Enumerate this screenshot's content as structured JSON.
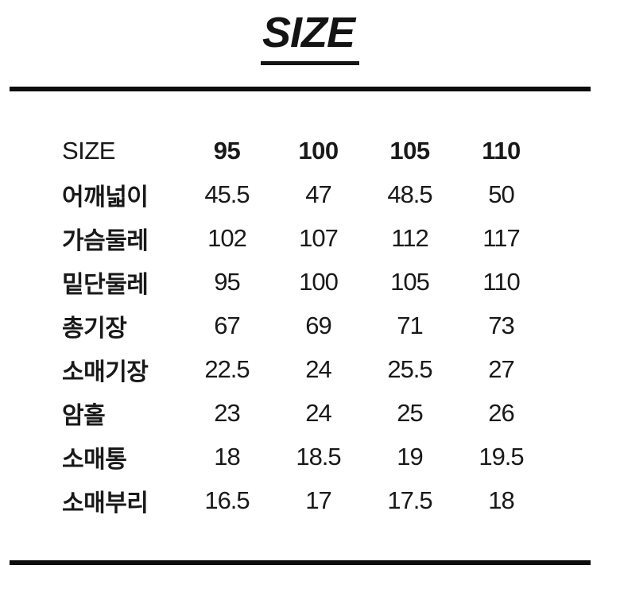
{
  "header": {
    "title": "SIZE"
  },
  "colors": {
    "text": "#191919",
    "rule": "#0d0d0d",
    "background": "#ffffff"
  },
  "table": {
    "header_label": "SIZE",
    "col_headers": [
      "95",
      "100",
      "105",
      "110"
    ],
    "rows": [
      {
        "label": "어깨넓이",
        "values": [
          "45.5",
          "47",
          "48.5",
          "50"
        ]
      },
      {
        "label": "가슴둘레",
        "values": [
          "102",
          "107",
          "112",
          "117"
        ]
      },
      {
        "label": "밑단둘레",
        "values": [
          "95",
          "100",
          "105",
          "110"
        ]
      },
      {
        "label": "총기장",
        "values": [
          "67",
          "69",
          "71",
          "73"
        ]
      },
      {
        "label": "소매기장",
        "values": [
          "22.5",
          "24",
          "25.5",
          "27"
        ]
      },
      {
        "label": "암홀",
        "values": [
          "23",
          "24",
          "25",
          "26"
        ]
      },
      {
        "label": "소매통",
        "values": [
          "18",
          "18.5",
          "19",
          "19.5"
        ]
      },
      {
        "label": "소매부리",
        "values": [
          "16.5",
          "17",
          "17.5",
          "18"
        ]
      }
    ]
  },
  "chart_data": {
    "type": "table",
    "title": "SIZE",
    "columns": [
      "SIZE",
      "95",
      "100",
      "105",
      "110"
    ],
    "rows": [
      [
        "어깨넓이",
        45.5,
        47,
        48.5,
        50
      ],
      [
        "가슴둘레",
        102,
        107,
        112,
        117
      ],
      [
        "밑단둘레",
        95,
        100,
        105,
        110
      ],
      [
        "총기장",
        67,
        69,
        71,
        73
      ],
      [
        "소매기장",
        22.5,
        24,
        25.5,
        27
      ],
      [
        "암홀",
        23,
        24,
        25,
        26
      ],
      [
        "소매통",
        18,
        18.5,
        19,
        19.5
      ],
      [
        "소매부리",
        16.5,
        17,
        17.5,
        18
      ]
    ],
    "notes": "Korean apparel size chart: shoulder width, chest, hem, total length, sleeve length, armhole, sleeve width, cuff"
  }
}
